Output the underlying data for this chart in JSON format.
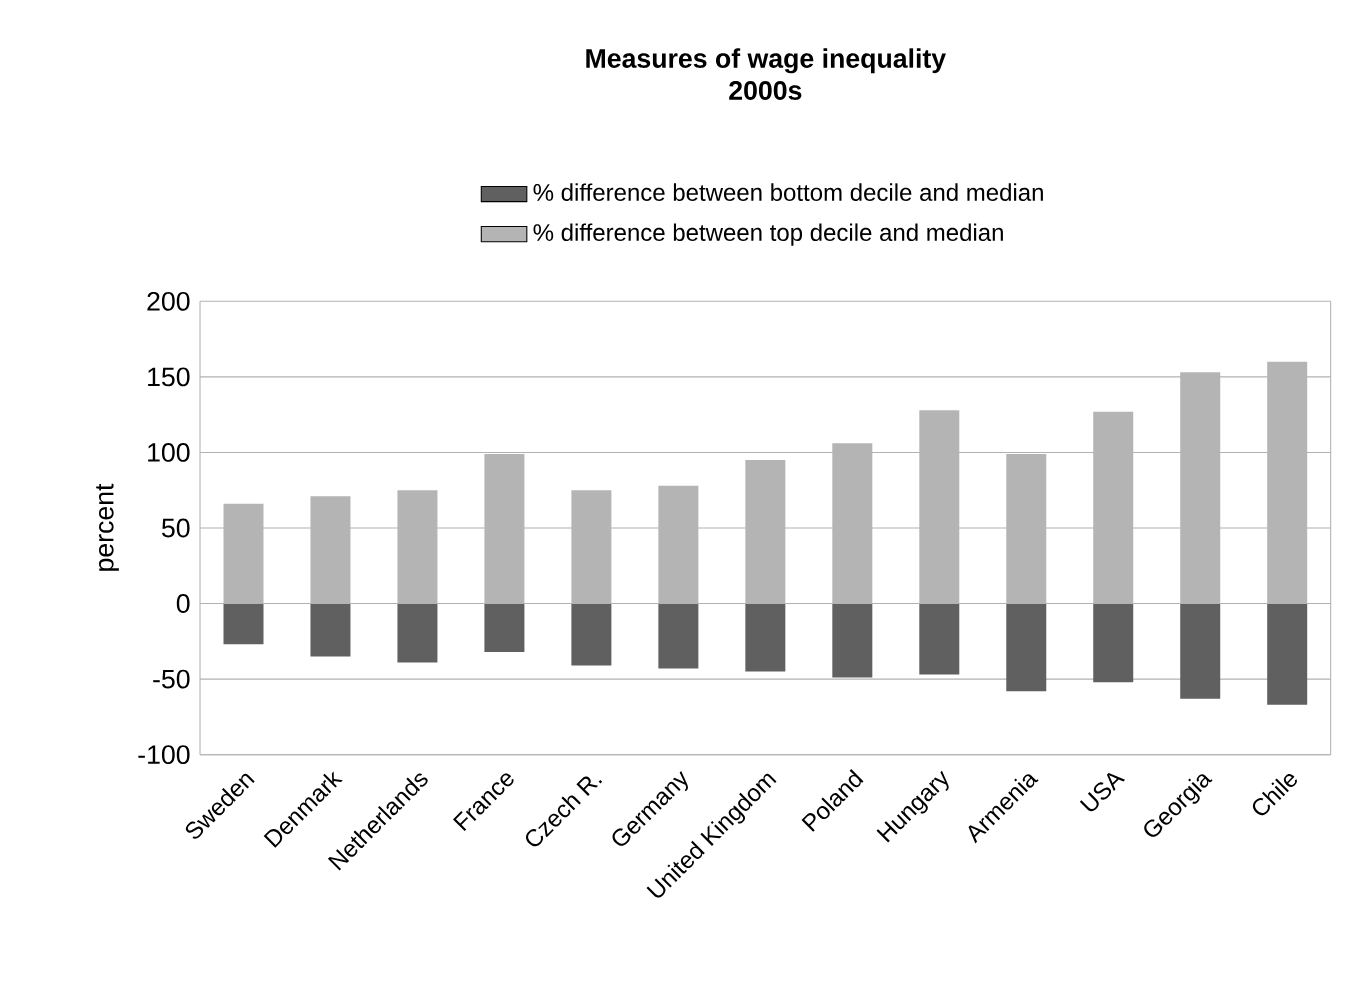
{
  "chart_data": {
    "type": "bar",
    "title": "Measures of wage inequality",
    "subtitle": "2000s",
    "ylabel": "percent",
    "stacked": true,
    "categories": [
      "Sweden",
      "Denmark",
      "Netherlands",
      "France",
      "Czech R.",
      "Germany",
      "United Kingdom",
      "Poland",
      "Hungary",
      "Armenia",
      "USA",
      "Georgia",
      "Chile"
    ],
    "series": [
      {
        "name": "% difference between bottom decile and median",
        "color": "#606060",
        "values": [
          -27,
          -35,
          -39,
          -32,
          -41,
          -43,
          -45,
          -49,
          -47,
          -58,
          -52,
          -63,
          -67
        ]
      },
      {
        "name": "% difference between top decile and median",
        "color": "#b4b4b4",
        "values": [
          66,
          71,
          75,
          99,
          75,
          78,
          95,
          106,
          128,
          99,
          127,
          153,
          160
        ]
      }
    ],
    "ylim": [
      -100,
      200
    ],
    "yticks": [
      -100,
      -50,
      0,
      50,
      100,
      150,
      200
    ],
    "grid": "y",
    "legend": "top"
  }
}
